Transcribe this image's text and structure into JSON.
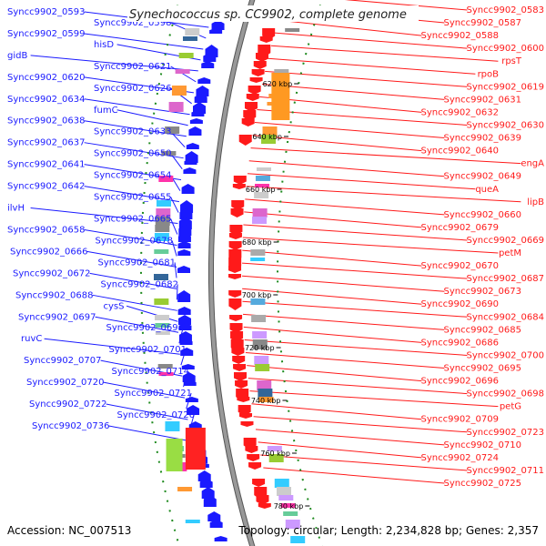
{
  "title": "Synechococcus sp. CC9902, complete genome",
  "footer": {
    "accession": "Accession: NC_007513",
    "topology": "Topology: circular; Length: 2,234,828 bp; Genes: 2,357"
  },
  "colors": {
    "forward": "#1a1aff",
    "reverse": "#ff1a1a",
    "backbone": "#999999",
    "tick_dots": "#1e8a1e"
  },
  "ticks": [
    "620 kbp",
    "640 kbp",
    "660 kbp",
    "680 kbp",
    "700 kbp",
    "720 kbp",
    "740 kbp",
    "760 kbp",
    "780 kbp"
  ],
  "left_labels": [
    "Syncc9902_0593",
    "Syncc9902_0598",
    "Syncc9902_0599",
    "hisD",
    "gidB",
    "Syncc9902_0621",
    "Syncc9902_0620",
    "Syncc9902_0626",
    "Syncc9902_0634",
    "fumC",
    "Syncc9902_0638",
    "Syncc9902_0633",
    "Syncc9902_0637",
    "Syncc9902_0650",
    "Syncc9902_0641",
    "Syncc9902_0654",
    "Syncc9902_0642",
    "Syncc9902_0655",
    "ilvH",
    "Syncc9902_0665",
    "Syncc9902_0658",
    "Syncc9902_0678",
    "Syncc9902_0666",
    "Syncc9902_0681",
    "Syncc9902_0672",
    "Syncc9902_0682",
    "Syncc9902_0688",
    "cysS",
    "Syncc9902_0697",
    "Syncc9902_0694",
    "ruvC",
    "Syncc9902_0701",
    "Syncc9902_0707",
    "Syncc9902_0714",
    "Syncc9902_0720",
    "Syncc9902_0721",
    "Syncc9902_0722",
    "Syncc9902_0726",
    "Syncc9902_0736"
  ],
  "right_labels": [
    "Syncc9902_0583",
    "Syncc9902_0587",
    "Syncc9902_0588",
    "Syncc9902_0600",
    "rpsT",
    "rpoB",
    "Syncc9902_0619",
    "Syncc9902_0631",
    "Syncc9902_0632",
    "Syncc9902_0630",
    "Syncc9902_0639",
    "Syncc9902_0640",
    "engA",
    "Syncc9902_0649",
    "queA",
    "lipB",
    "Syncc9902_0660",
    "Syncc9902_0679",
    "Syncc9902_0669",
    "petM",
    "Syncc9902_0670",
    "Syncc9902_0687",
    "Syncc9902_0673",
    "Syncc9902_0690",
    "Syncc9902_0684",
    "Syncc9902_0685",
    "Syncc9902_0686",
    "Syncc9902_0700",
    "Syncc9902_0695",
    "Syncc9902_0696",
    "Syncc9902_0698",
    "petG",
    "Syncc9902_0709",
    "Syncc9902_0723",
    "Syncc9902_0710",
    "Syncc9902_0724",
    "Syncc9902_0711",
    "Syncc9902_0725"
  ]
}
